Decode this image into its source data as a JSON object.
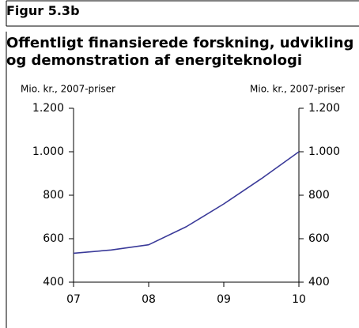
{
  "chart_data": {
    "type": "line",
    "figure_label": "Figur 5.3b",
    "title": "Offentligt finansierede forskning, udvikling og demonstration af energiteknologi",
    "ylabel": "Mio. kr., 2007-priser",
    "y2label": "Mio. kr., 2007-priser",
    "x": [
      7,
      7.5,
      8,
      8.5,
      9,
      9.5,
      10
    ],
    "series": [
      {
        "name": "Offentligt finansierede forskning",
        "color": "#3a3a99",
        "values": [
          533,
          548,
          572,
          655,
          760,
          876,
          1000
        ]
      }
    ],
    "xlim": [
      7,
      10
    ],
    "xticks": [
      {
        "value": 7,
        "label": "07"
      },
      {
        "value": 8,
        "label": "08"
      },
      {
        "value": 9,
        "label": "09"
      },
      {
        "value": 10,
        "label": "10"
      }
    ],
    "ylim": [
      400,
      1200
    ],
    "yticks": [
      400,
      600,
      800,
      {
        "value": 1000,
        "label": "1.000"
      },
      {
        "value": 1200,
        "label": "1.200"
      }
    ],
    "y2lim": [
      400,
      1200
    ],
    "y2ticks": [
      400,
      600,
      800,
      {
        "value": 1000,
        "label": "1.000"
      },
      {
        "value": 1200,
        "label": "1.200"
      }
    ]
  }
}
